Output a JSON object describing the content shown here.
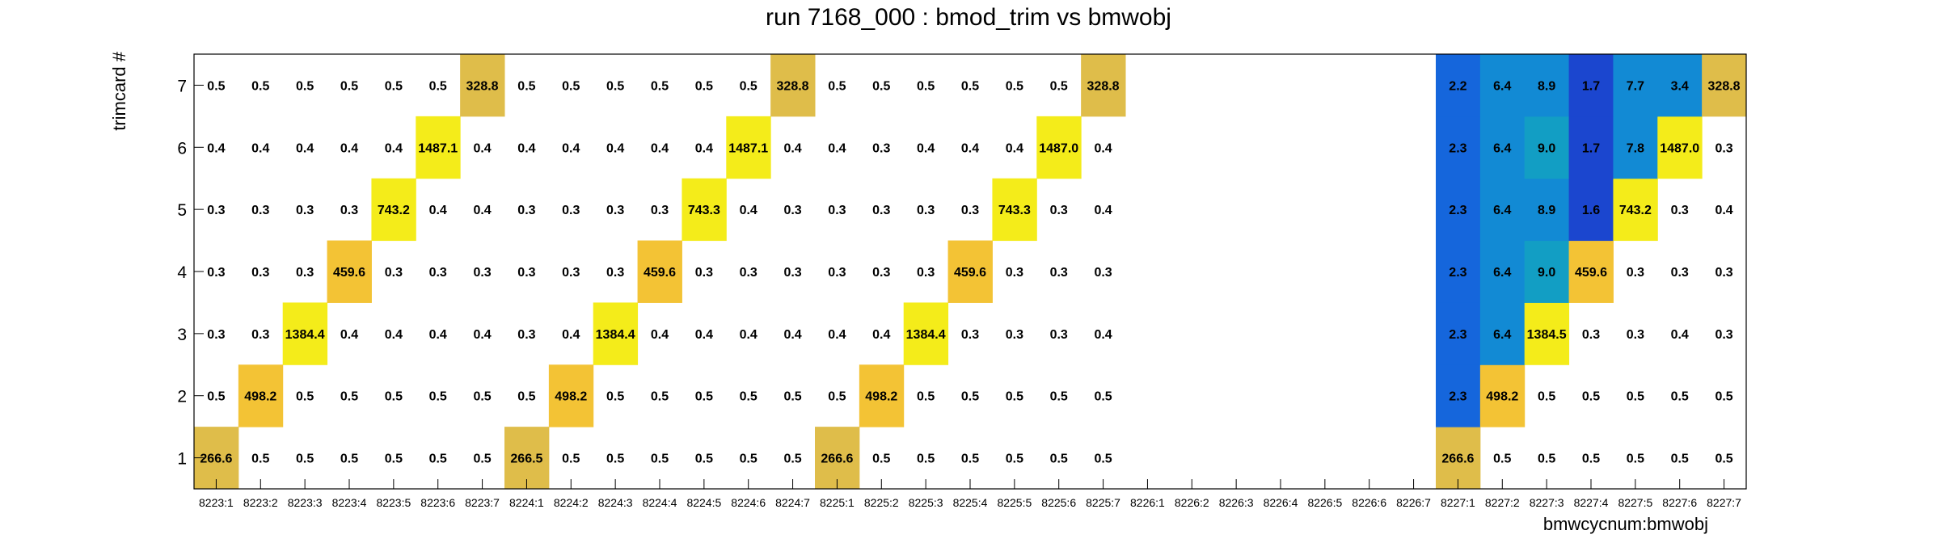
{
  "chart_data": {
    "type": "heatmap",
    "title": "run 7168_000 : bmod_trim vs bmwobj",
    "xlabel": "bmwcycnum:bmwobj",
    "ylabel": "trimcard #",
    "x_categories": [
      "8223:1",
      "8223:2",
      "8223:3",
      "8223:4",
      "8223:5",
      "8223:6",
      "8223:7",
      "8224:1",
      "8224:2",
      "8224:3",
      "8224:4",
      "8224:5",
      "8224:6",
      "8224:7",
      "8225:1",
      "8225:2",
      "8225:3",
      "8225:4",
      "8225:5",
      "8225:6",
      "8225:7",
      "8226:1",
      "8226:2",
      "8226:3",
      "8226:4",
      "8226:5",
      "8226:6",
      "8226:7",
      "8227:1",
      "8227:2",
      "8227:3",
      "8227:4",
      "8227:5",
      "8227:6",
      "8227:7"
    ],
    "y_categories": [
      "1",
      "2",
      "3",
      "4",
      "5",
      "6",
      "7"
    ],
    "rows": [
      {
        "y": "1",
        "values": [
          "266.6",
          "0.5",
          "0.5",
          "0.5",
          "0.5",
          "0.5",
          "0.5",
          "266.5",
          "0.5",
          "0.5",
          "0.5",
          "0.5",
          "0.5",
          "0.5",
          "266.6",
          "0.5",
          "0.5",
          "0.5",
          "0.5",
          "0.5",
          "0.5",
          null,
          null,
          null,
          null,
          null,
          null,
          null,
          "266.6",
          "0.5",
          "0.5",
          "0.5",
          "0.5",
          "0.5",
          "0.5"
        ]
      },
      {
        "y": "2",
        "values": [
          "0.5",
          "498.2",
          "0.5",
          "0.5",
          "0.5",
          "0.5",
          "0.5",
          "0.5",
          "498.2",
          "0.5",
          "0.5",
          "0.5",
          "0.5",
          "0.5",
          "0.5",
          "498.2",
          "0.5",
          "0.5",
          "0.5",
          "0.5",
          "0.5",
          null,
          null,
          null,
          null,
          null,
          null,
          null,
          "2.3",
          "498.2",
          "0.5",
          "0.5",
          "0.5",
          "0.5",
          "0.5"
        ]
      },
      {
        "y": "3",
        "values": [
          "0.3",
          "0.3",
          "1384.4",
          "0.4",
          "0.4",
          "0.4",
          "0.4",
          "0.3",
          "0.4",
          "1384.4",
          "0.4",
          "0.4",
          "0.4",
          "0.4",
          "0.4",
          "0.4",
          "1384.4",
          "0.3",
          "0.3",
          "0.3",
          "0.4",
          null,
          null,
          null,
          null,
          null,
          null,
          null,
          "2.3",
          "6.4",
          "1384.5",
          "0.3",
          "0.3",
          "0.4",
          "0.3"
        ]
      },
      {
        "y": "4",
        "values": [
          "0.3",
          "0.3",
          "0.3",
          "459.6",
          "0.3",
          "0.3",
          "0.3",
          "0.3",
          "0.3",
          "0.3",
          "459.6",
          "0.3",
          "0.3",
          "0.3",
          "0.3",
          "0.3",
          "0.3",
          "459.6",
          "0.3",
          "0.3",
          "0.3",
          null,
          null,
          null,
          null,
          null,
          null,
          null,
          "2.3",
          "6.4",
          "9.0",
          "459.6",
          "0.3",
          "0.3",
          "0.3"
        ]
      },
      {
        "y": "5",
        "values": [
          "0.3",
          "0.3",
          "0.3",
          "0.3",
          "743.2",
          "0.4",
          "0.4",
          "0.3",
          "0.3",
          "0.3",
          "0.3",
          "743.3",
          "0.4",
          "0.3",
          "0.3",
          "0.3",
          "0.3",
          "0.3",
          "743.3",
          "0.3",
          "0.4",
          null,
          null,
          null,
          null,
          null,
          null,
          null,
          "2.3",
          "6.4",
          "8.9",
          "1.6",
          "743.2",
          "0.3",
          "0.4"
        ]
      },
      {
        "y": "6",
        "values": [
          "0.4",
          "0.4",
          "0.4",
          "0.4",
          "0.4",
          "1487.1",
          "0.4",
          "0.4",
          "0.4",
          "0.4",
          "0.4",
          "0.4",
          "1487.1",
          "0.4",
          "0.4",
          "0.3",
          "0.4",
          "0.4",
          "0.4",
          "1487.0",
          "0.4",
          null,
          null,
          null,
          null,
          null,
          null,
          null,
          "2.3",
          "6.4",
          "9.0",
          "1.7",
          "7.8",
          "1487.0",
          "0.3"
        ]
      },
      {
        "y": "7",
        "values": [
          "0.5",
          "0.5",
          "0.5",
          "0.5",
          "0.5",
          "0.5",
          "328.8",
          "0.5",
          "0.5",
          "0.5",
          "0.5",
          "0.5",
          "0.5",
          "328.8",
          "0.5",
          "0.5",
          "0.5",
          "0.5",
          "0.5",
          "0.5",
          "328.8",
          null,
          null,
          null,
          null,
          null,
          null,
          null,
          "2.2",
          "6.4",
          "8.9",
          "1.7",
          "7.7",
          "3.4",
          "328.8"
        ]
      }
    ],
    "cell_colors": {
      "very_low": "#1b46cf",
      "low": "#1566dc",
      "mid_low": "#128ad4",
      "mid": "#129ec4",
      "mid_high": "#f3c335",
      "high": "#f4ec1a",
      "top": "#dfbd4a"
    },
    "colored_columns": [
      "8227:1",
      "8227:2",
      "8227:3",
      "8227:4",
      "8227:5",
      "8227:6",
      "8227:7"
    ],
    "grid": false
  }
}
